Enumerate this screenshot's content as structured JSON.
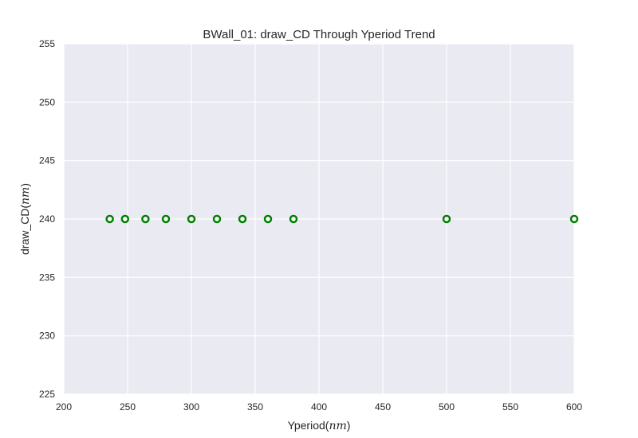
{
  "chart_data": {
    "type": "scatter",
    "title": "BWall_01: draw_CD Through Yperiod Trend",
    "xlabel": "Yperiod",
    "xlabel_unit": "nm",
    "ylabel": "draw_CD",
    "ylabel_unit": "nm",
    "xlim": [
      200,
      600
    ],
    "ylim": [
      225,
      255
    ],
    "xticks": [
      200,
      250,
      300,
      350,
      400,
      450,
      500,
      550,
      600
    ],
    "yticks": [
      225,
      230,
      235,
      240,
      245,
      250,
      255
    ],
    "grid": true,
    "marker": "circle-open",
    "marker_color": "#008000",
    "background_color": "#EAEAF2",
    "grid_color": "#FFFFFF",
    "series": [
      {
        "x": [
          236,
          248,
          264,
          280,
          300,
          320,
          340,
          360,
          380,
          500,
          600
        ],
        "y": [
          240,
          240,
          240,
          240,
          240,
          240,
          240,
          240,
          240,
          240,
          240
        ]
      }
    ]
  }
}
